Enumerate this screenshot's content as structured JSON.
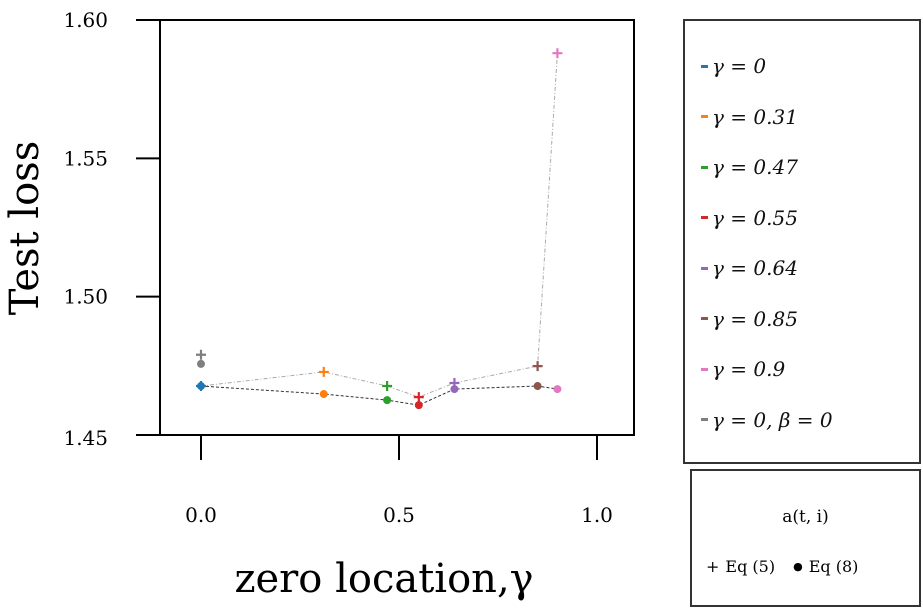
{
  "chart_data": {
    "type": "scatter",
    "xlabel": "zero location,γ",
    "ylabel": "Test loss",
    "xlim": [
      -0.1,
      1.09
    ],
    "ylim": [
      1.45,
      1.6
    ],
    "xticks": [
      0.0,
      0.5,
      1.0
    ],
    "xtick_labels": [
      "0.0",
      "0.5",
      "1.0"
    ],
    "yticks": [
      1.45,
      1.5,
      1.55,
      1.6
    ],
    "ytick_labels": [
      "1.45",
      "1.50",
      "1.55",
      "1.60"
    ],
    "grid": false,
    "series": [
      {
        "name": "γ = 0",
        "color": "#1f77b4",
        "x": 0.0,
        "eq5": 1.4677,
        "eq8": 1.4677
      },
      {
        "name": "γ = 0.31",
        "color": "#ff7f0e",
        "x": 0.31,
        "eq5": 1.4728,
        "eq8": 1.4648
      },
      {
        "name": "γ = 0.47",
        "color": "#2ca02c",
        "x": 0.47,
        "eq5": 1.4677,
        "eq8": 1.4626
      },
      {
        "name": "γ = 0.55",
        "color": "#d62728",
        "x": 0.55,
        "eq5": 1.4637,
        "eq8": 1.4608
      },
      {
        "name": "γ = 0.64",
        "color": "#9467bd",
        "x": 0.64,
        "eq5": 1.4688,
        "eq8": 1.4666
      },
      {
        "name": "γ = 0.85",
        "color": "#8c564b",
        "x": 0.85,
        "eq5": 1.4749,
        "eq8": 1.4677
      },
      {
        "name": "γ = 0.9",
        "color": "#e377c2",
        "x": 0.9,
        "eq5": 1.588,
        "eq8": 1.4666
      },
      {
        "name": "γ = 0, β = 0",
        "color": "#7f7f7f",
        "x": 0.0,
        "eq5": 1.479,
        "eq8": 1.4757
      }
    ],
    "lines": [
      {
        "name": "Eq (5) trend",
        "color": "#aaaaaa",
        "style": "dashdot",
        "marker": "eq5"
      },
      {
        "name": "Eq (8) trend",
        "color": "#333333",
        "style": "dashed",
        "marker": "eq8"
      }
    ],
    "legend_title": "a(t, i)",
    "markers_legend": [
      {
        "symbol": "+",
        "label": "Eq (5)"
      },
      {
        "symbol": "●",
        "label": "Eq (8)"
      }
    ],
    "legend_placement": "right"
  }
}
